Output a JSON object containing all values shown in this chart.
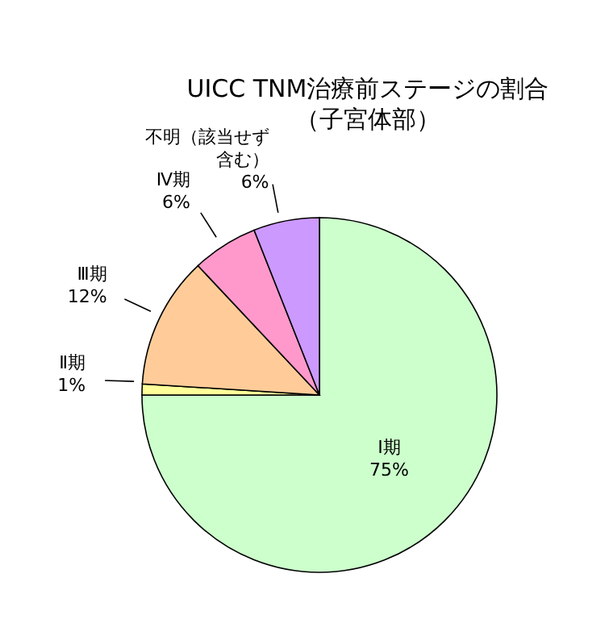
{
  "chart_data": {
    "type": "pie",
    "title": "UICC TNM治療前ステージの割合",
    "subtitle": "（子宮体部）",
    "categories": [
      "Ⅰ期",
      "Ⅱ期",
      "Ⅲ期",
      "Ⅳ期",
      "不明（該当せず含む）"
    ],
    "values": [
      75,
      1,
      12,
      6,
      6
    ],
    "value_labels": [
      "75%",
      "1%",
      "12%",
      "6%",
      "6%"
    ],
    "colors": [
      "#ccffcc",
      "#ffff99",
      "#ffcc99",
      "#ff99cc",
      "#cc99ff"
    ],
    "legend": false
  }
}
